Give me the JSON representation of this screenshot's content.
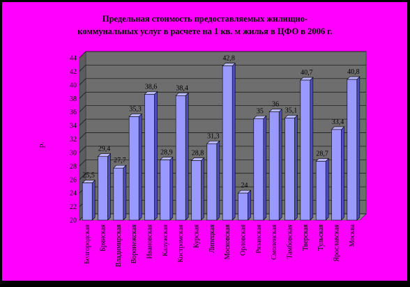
{
  "colors": {
    "outer": "#000000",
    "background": "#ff00ff",
    "plot": "#6e6e6e",
    "bar_front": "#9999ff",
    "bar_side": "#4d4dbb",
    "bar_top": "#b8b8ff",
    "grid": "#111111",
    "text": "#000000"
  },
  "chart_data": {
    "type": "bar",
    "title_lines": [
      "Предельная стоимость предоставляемых жилищно-",
      "коммунальных услуг в расчете на 1 кв. м жилья в ЦФО в 2006 г."
    ],
    "ylabel": "р.",
    "xlabel": "",
    "ylim": [
      20,
      44
    ],
    "y_ticks": [
      "20",
      "22",
      "24",
      "26",
      "28",
      "30",
      "32",
      "34",
      "36",
      "38",
      "40",
      "42",
      "44"
    ],
    "categories": [
      "Белгородская",
      "Брянская",
      "Владимирская",
      "Воронежская",
      "Ивановская",
      "Калужская",
      "Костромская",
      "Курская",
      "Липецкая",
      "Московская",
      "Орловская",
      "Рязанская",
      "Смоленская",
      "Тамбовская",
      "Тверская",
      "Тульская",
      "Ярославская",
      "Москва"
    ],
    "values": [
      25.5,
      29.4,
      27.7,
      35.3,
      38.6,
      28.9,
      38.4,
      28.8,
      31.3,
      42.8,
      24,
      35,
      36,
      35.1,
      40.7,
      28.7,
      33.4,
      40.8
    ],
    "value_labels": [
      "25,5",
      "29,4",
      "27,7",
      "35,3",
      "38,6",
      "28,9",
      "38,4",
      "28,8",
      "31,3",
      "42,8",
      "24",
      "35",
      "36",
      "35,1",
      "40,7",
      "28,7",
      "33,4",
      "40,8"
    ],
    "grid": true,
    "legend": "none"
  }
}
